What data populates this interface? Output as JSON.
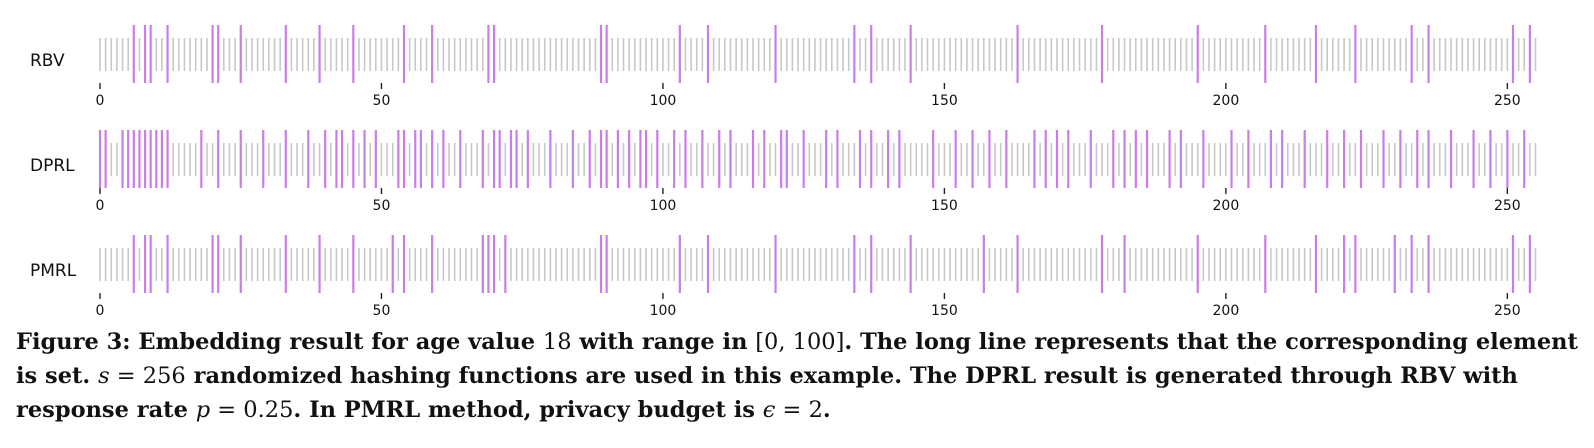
{
  "chart_data": [
    {
      "type": "bar",
      "name": "RBV",
      "x_range": [
        0,
        255
      ],
      "x_ticks": [
        0,
        50,
        100,
        150,
        200,
        250
      ],
      "set_elements": [
        6,
        8,
        9,
        12,
        20,
        21,
        25,
        33,
        39,
        45,
        54,
        59,
        69,
        70,
        89,
        90,
        103,
        108,
        120,
        134,
        137,
        144,
        163,
        178,
        195,
        207,
        216,
        223,
        233,
        236,
        251,
        254
      ],
      "colors": {
        "set": "#c97de9",
        "unset": "#c8c8c8",
        "axis": "#222222"
      }
    },
    {
      "type": "bar",
      "name": "DPRL",
      "x_range": [
        0,
        255
      ],
      "x_ticks": [
        0,
        50,
        100,
        150,
        200,
        250
      ],
      "set_elements": [
        0,
        1,
        4,
        5,
        6,
        7,
        8,
        9,
        10,
        11,
        12,
        18,
        21,
        25,
        29,
        33,
        37,
        40,
        42,
        43,
        45,
        47,
        49,
        53,
        54,
        56,
        57,
        59,
        61,
        64,
        68,
        70,
        71,
        73,
        74,
        76,
        80,
        84,
        87,
        89,
        90,
        92,
        94,
        96,
        97,
        99,
        102,
        104,
        107,
        110,
        112,
        116,
        118,
        121,
        122,
        125,
        129,
        131,
        135,
        137,
        140,
        142,
        148,
        152,
        155,
        158,
        161,
        166,
        168,
        170,
        172,
        176,
        180,
        182,
        184,
        186,
        190,
        192,
        196,
        201,
        204,
        208,
        210,
        214,
        218,
        221,
        224,
        228,
        231,
        234,
        236,
        240,
        244,
        247,
        250,
        253
      ],
      "colors": {
        "set": "#c97de9",
        "unset": "#c8c8c8",
        "axis": "#222222"
      }
    },
    {
      "type": "bar",
      "name": "PMRL",
      "x_range": [
        0,
        255
      ],
      "x_ticks": [
        0,
        50,
        100,
        150,
        200,
        250
      ],
      "set_elements": [
        6,
        8,
        9,
        12,
        20,
        21,
        25,
        33,
        39,
        45,
        52,
        54,
        59,
        68,
        69,
        70,
        72,
        89,
        90,
        103,
        108,
        120,
        134,
        137,
        144,
        157,
        163,
        178,
        182,
        195,
        207,
        216,
        221,
        223,
        230,
        233,
        236,
        251,
        254
      ],
      "colors": {
        "set": "#c97de9",
        "unset": "#c8c8c8",
        "axis": "#222222"
      }
    }
  ],
  "caption": {
    "label": "Figure 3:",
    "text_a": " Embedding result for age value ",
    "math_age": "18",
    "text_b": " with range in ",
    "math_range": "[0, 100]",
    "text_c": ". The long line represents that the corresponding element is set. ",
    "math_s_var": "s",
    "math_s_eq": " = 256",
    "text_d": " randomized hashing functions are used in this example. The DPRL result is generated through RBV with response rate ",
    "math_p_var": "p",
    "math_p_eq": " = 0.25",
    "text_e": ". In PMRL method, privacy budget is ",
    "math_eps_var": "ϵ",
    "math_eps_eq": " = 2",
    "text_f": "."
  }
}
